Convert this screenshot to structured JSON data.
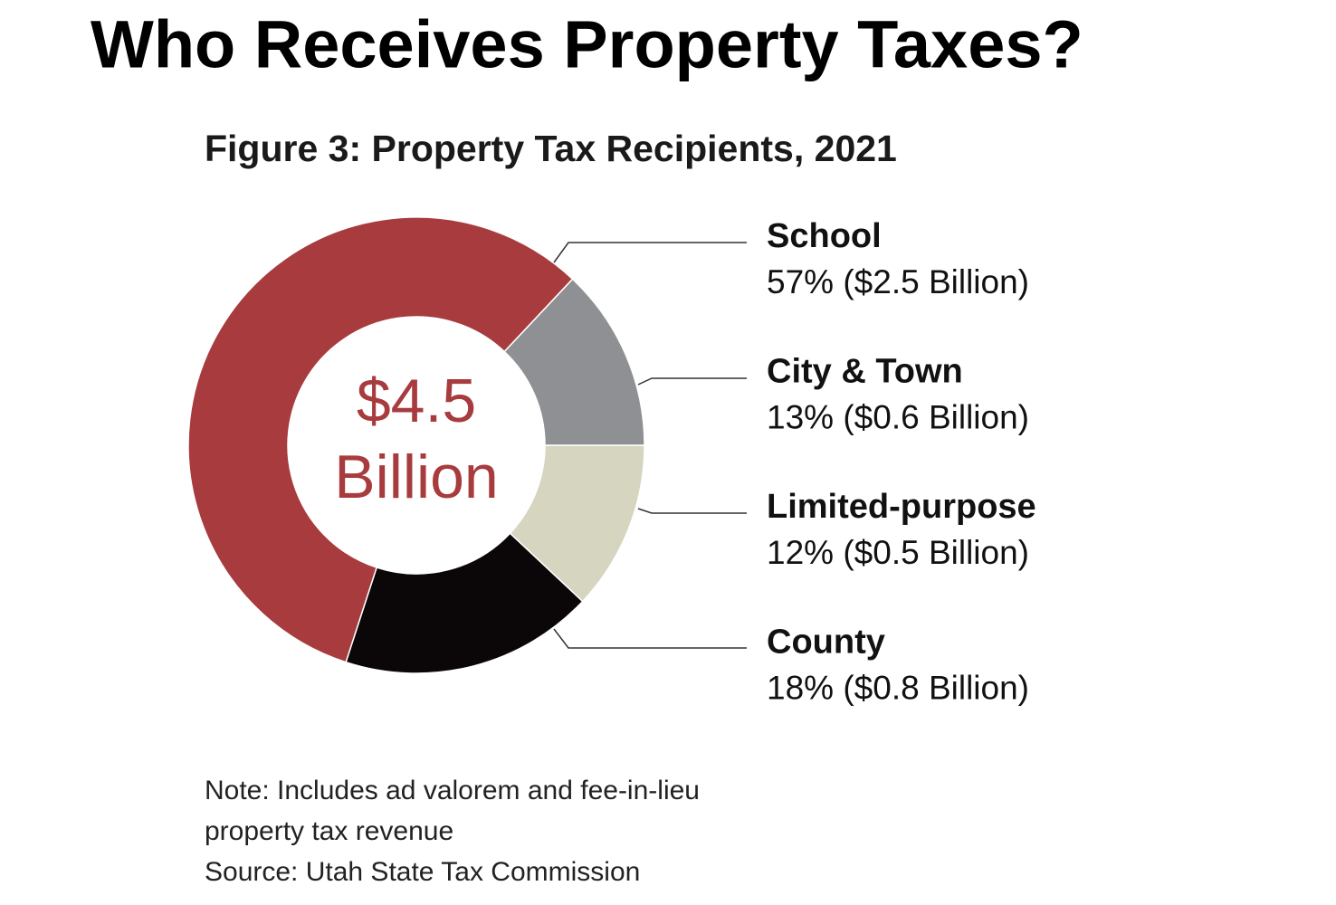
{
  "title": "Who Receives Property Taxes?",
  "chart_data": {
    "type": "donut",
    "title": "Figure 3: Property Tax Recipients, 2021",
    "categories": [
      "School",
      "City & Town",
      "Limited-purpose",
      "County"
    ],
    "values": [
      57,
      13,
      12,
      18
    ],
    "value_labels": [
      "57%",
      "13%",
      "12%",
      "18%"
    ],
    "amount_labels": [
      "($2.5 Billion)",
      "($0.6 Billion)",
      "($0.5 Billion)",
      "($0.8 Billion)"
    ],
    "colors": [
      "#a73b3d",
      "#8e9093",
      "#d6d5c0",
      "#0b0708"
    ],
    "center_label": [
      "$4.5",
      "Billion"
    ]
  },
  "note": [
    "Note: Includes ad valorem and fee-in-lieu",
    "property tax revenue",
    "Source: Utah State Tax Commission"
  ]
}
